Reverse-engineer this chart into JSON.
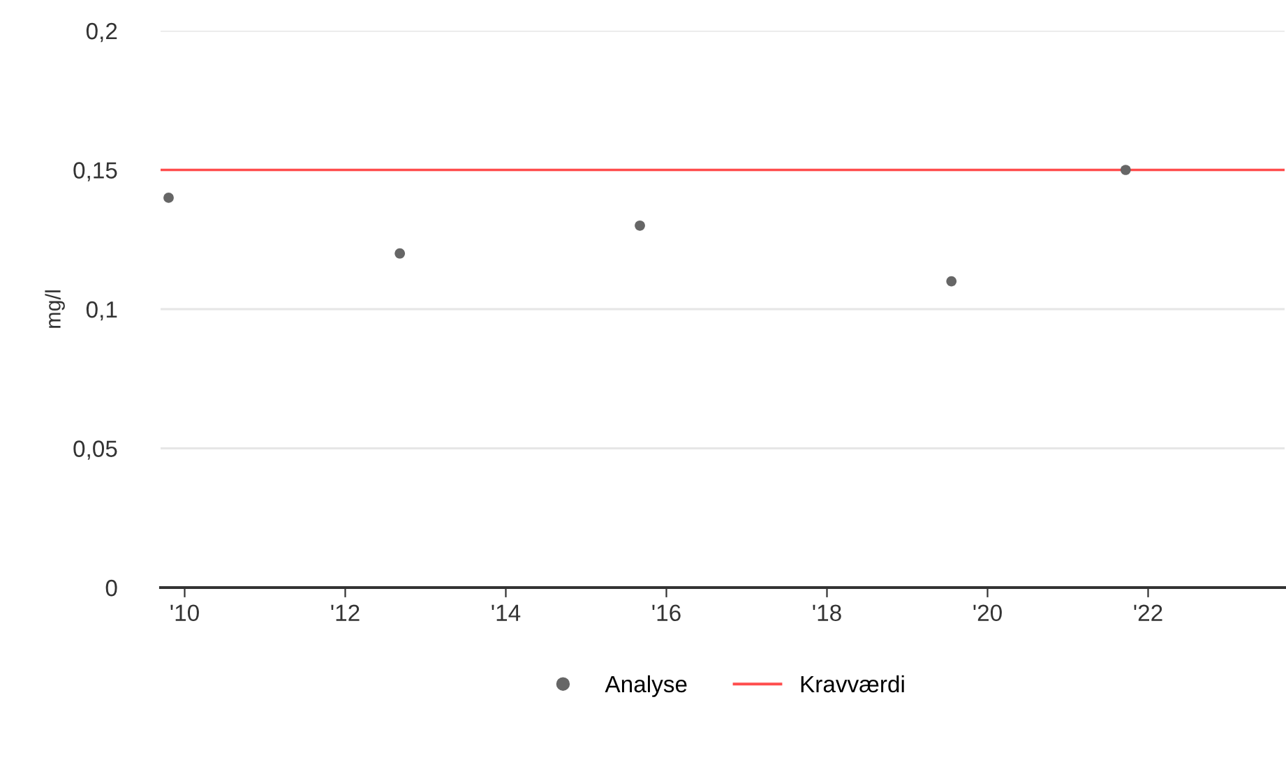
{
  "chart_data": {
    "type": "scatter",
    "ylabel": "mg/l",
    "x": [
      2009.8,
      2012.68,
      2015.67,
      2019.55,
      2021.72
    ],
    "series": [
      {
        "name": "Analyse",
        "color": "#666666",
        "values": [
          0.14,
          0.12,
          0.13,
          0.11,
          0.15
        ]
      }
    ],
    "xlim": [
      2009.7,
      2023.7
    ],
    "xticks": [
      {
        "value": 2010,
        "label": "'10"
      },
      {
        "value": 2012,
        "label": "'12"
      },
      {
        "value": 2014,
        "label": "'14"
      },
      {
        "value": 2016,
        "label": "'16"
      },
      {
        "value": 2018,
        "label": "'18"
      },
      {
        "value": 2020,
        "label": "'20"
      },
      {
        "value": 2022,
        "label": "'22"
      }
    ],
    "ylim": [
      0,
      0.2
    ],
    "yticks": [
      {
        "value": 0,
        "label": "0"
      },
      {
        "value": 0.05,
        "label": "0,05"
      },
      {
        "value": 0.1,
        "label": "0,1"
      },
      {
        "value": 0.15,
        "label": "0,15"
      },
      {
        "value": 0.2,
        "label": "0,2"
      }
    ],
    "ref_lines": [
      {
        "axis": "y",
        "value": 0.15,
        "label": "Kravværdi",
        "color": "#ff4d4d"
      }
    ],
    "grid": "y",
    "legend": "bottom",
    "marker": "circle"
  }
}
